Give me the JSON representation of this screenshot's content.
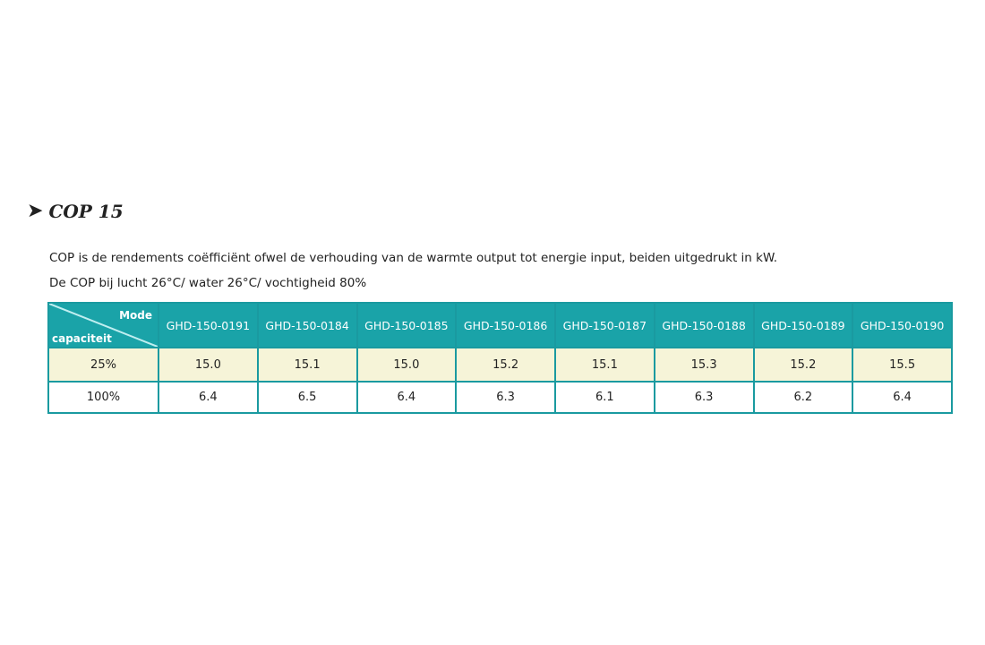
{
  "title": {
    "icon": "chevron-right-icon",
    "text": "COP 15"
  },
  "paragraphs": [
    "COP is de rendements coëfficiënt ofwel de verhouding van de warmte output tot energie input, beiden uitgedrukt in kW.",
    "De COP bij lucht 26°C/ water 26°C/ vochtigheid 80%"
  ],
  "table": {
    "corner": {
      "top": "Mode",
      "bottom": "capaciteit"
    },
    "columns": [
      "GHD-150-0191",
      "GHD-150-0184",
      "GHD-150-0185",
      "GHD-150-0186",
      "GHD-150-0187",
      "GHD-150-0188",
      "GHD-150-0189",
      "GHD-150-0190"
    ],
    "rows": [
      {
        "label": "25%",
        "values": [
          "15.0",
          "15.1",
          "15.0",
          "15.2",
          "15.1",
          "15.3",
          "15.2",
          "15.5"
        ]
      },
      {
        "label": "100%",
        "values": [
          "6.4",
          "6.5",
          "6.4",
          "6.3",
          "6.1",
          "6.3",
          "6.2",
          "6.4"
        ]
      }
    ],
    "colors": {
      "header": "#1aa3a8",
      "row_highlight": "#f6f4d8",
      "border": "#1a9aa0"
    }
  }
}
